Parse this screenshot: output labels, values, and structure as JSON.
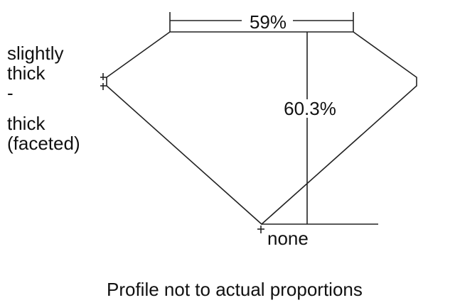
{
  "table_label": "59%",
  "depth_label": "60.3%",
  "girdle_label_lines": [
    "slightly",
    "thick",
    "-",
    "thick",
    "(faceted)"
  ],
  "culet_label": "none",
  "caption": "Profile not to actual proportions",
  "line_color": "#222222"
}
